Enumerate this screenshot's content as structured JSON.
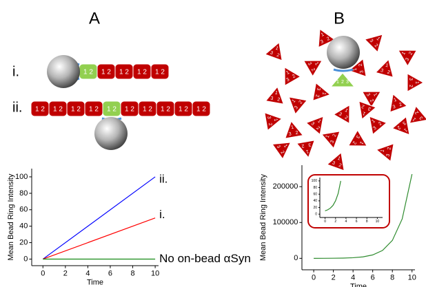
{
  "panels": [
    "A",
    "B"
  ],
  "diagram": {
    "row_labels": [
      "i.",
      "ii."
    ],
    "monomer_label": "1 2",
    "triangle_digits": [
      "1",
      "2",
      "3"
    ]
  },
  "chart_data": [
    {
      "type": "line",
      "x_label": "Time",
      "y_label": "Mean Bead Ring Intensity",
      "x": [
        0,
        10
      ],
      "xlim": [
        -1,
        10.3
      ],
      "ylim": [
        -8,
        110
      ],
      "xticks": [
        0,
        2,
        4,
        6,
        8,
        10
      ],
      "yticks": [
        0,
        20,
        40,
        60,
        80,
        100
      ],
      "series": [
        {
          "name": "ii.",
          "color": "#0000ff",
          "values": [
            0,
            100
          ]
        },
        {
          "name": "i.",
          "color": "#ff0000",
          "values": [
            0,
            50
          ]
        },
        {
          "name": "No on-bead αSyn",
          "color": "#008000",
          "values": [
            0,
            0
          ]
        }
      ]
    },
    {
      "type": "line",
      "x_label": "Time",
      "y_label": "Mean Bead Ring Intensity",
      "x": [
        0,
        1,
        2,
        3,
        4,
        5,
        6,
        7,
        8,
        9,
        10
      ],
      "xlim": [
        -1.2,
        10.3
      ],
      "ylim": [
        -32000,
        260000
      ],
      "xticks": [
        0,
        2,
        4,
        6,
        8,
        10
      ],
      "yticks": [
        0,
        100000,
        200000
      ],
      "series": [
        {
          "color": "#2e8b2e",
          "values": [
            0,
            100,
            300,
            700,
            1700,
            4000,
            9500,
            22000,
            50000,
            110000,
            235000
          ]
        }
      ]
    },
    {
      "type": "line",
      "x": [
        0,
        0.5,
        1,
        1.5,
        2,
        2.5,
        3
      ],
      "xlim": [
        -1,
        11
      ],
      "ylim": [
        -10,
        110
      ],
      "xticks": [
        0,
        2,
        4,
        6,
        8,
        10
      ],
      "yticks": [
        0,
        20,
        40,
        60,
        80,
        100
      ],
      "series": [
        {
          "color": "#2e8b2e",
          "values": [
            10,
            13,
            18,
            26,
            40,
            62,
            100
          ]
        }
      ]
    }
  ]
}
